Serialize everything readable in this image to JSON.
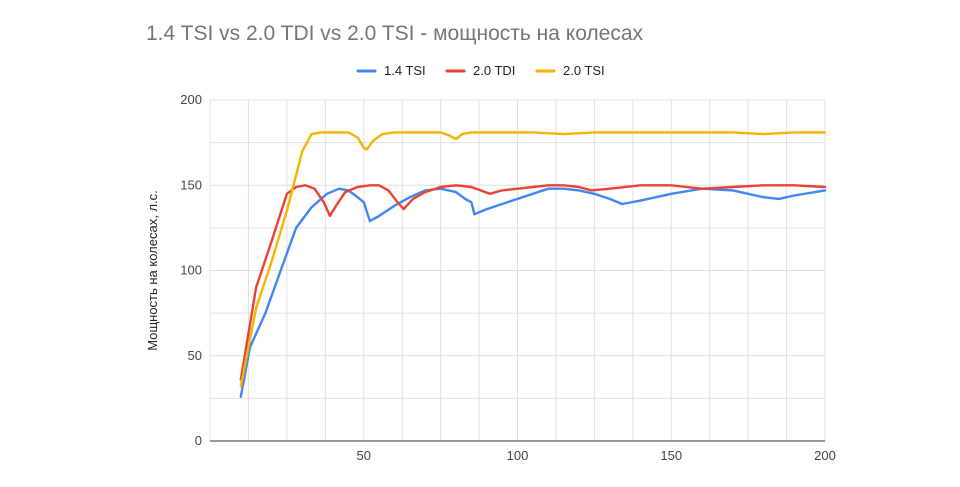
{
  "chart_data": {
    "type": "line",
    "title": "1.4 TSI vs 2.0 TDI vs 2.0 TSI - мощность на колесах",
    "xlabel": "",
    "ylabel": "Мощность на колесах, л.с.",
    "xlim": [
      0,
      200
    ],
    "ylim": [
      0,
      200
    ],
    "x_ticks": [
      50,
      100,
      150,
      200
    ],
    "y_ticks": [
      0,
      50,
      100,
      150,
      200
    ],
    "grid": true,
    "legend_position": "top",
    "series": [
      {
        "name": "1.4 TSI",
        "color": "#4285F4",
        "points": [
          [
            10,
            26
          ],
          [
            13,
            55
          ],
          [
            18,
            75
          ],
          [
            23,
            100
          ],
          [
            28,
            125
          ],
          [
            33,
            137
          ],
          [
            38,
            145
          ],
          [
            42,
            148
          ],
          [
            45,
            147
          ],
          [
            48,
            143
          ],
          [
            50,
            140
          ],
          [
            52,
            129
          ],
          [
            55,
            132
          ],
          [
            60,
            138
          ],
          [
            65,
            143
          ],
          [
            70,
            147
          ],
          [
            75,
            148
          ],
          [
            80,
            146
          ],
          [
            83,
            142
          ],
          [
            85,
            140
          ],
          [
            86,
            133
          ],
          [
            90,
            136
          ],
          [
            95,
            139
          ],
          [
            100,
            142
          ],
          [
            105,
            145
          ],
          [
            110,
            148
          ],
          [
            115,
            148
          ],
          [
            120,
            147
          ],
          [
            125,
            145
          ],
          [
            130,
            142
          ],
          [
            134,
            139
          ],
          [
            140,
            141
          ],
          [
            150,
            145
          ],
          [
            160,
            148
          ],
          [
            170,
            147
          ],
          [
            180,
            143
          ],
          [
            185,
            142
          ],
          [
            190,
            144
          ],
          [
            200,
            147
          ]
        ]
      },
      {
        "name": "2.0 TDI",
        "color": "#EA4335",
        "points": [
          [
            10,
            36
          ],
          [
            15,
            90
          ],
          [
            20,
            117
          ],
          [
            25,
            145
          ],
          [
            28,
            149
          ],
          [
            31,
            150
          ],
          [
            34,
            148
          ],
          [
            37,
            140
          ],
          [
            39,
            132
          ],
          [
            41,
            138
          ],
          [
            44,
            146
          ],
          [
            48,
            149
          ],
          [
            52,
            150
          ],
          [
            55,
            150
          ],
          [
            58,
            147
          ],
          [
            61,
            140
          ],
          [
            63,
            136
          ],
          [
            66,
            142
          ],
          [
            70,
            146
          ],
          [
            75,
            149
          ],
          [
            80,
            150
          ],
          [
            85,
            149
          ],
          [
            88,
            147
          ],
          [
            91,
            145
          ],
          [
            95,
            147
          ],
          [
            100,
            148
          ],
          [
            105,
            149
          ],
          [
            110,
            150
          ],
          [
            115,
            150
          ],
          [
            120,
            149
          ],
          [
            124,
            147
          ],
          [
            130,
            148
          ],
          [
            140,
            150
          ],
          [
            150,
            150
          ],
          [
            160,
            148
          ],
          [
            170,
            149
          ],
          [
            180,
            150
          ],
          [
            190,
            150
          ],
          [
            200,
            149
          ]
        ]
      },
      {
        "name": "2.0 TSI",
        "color": "#F4B400",
        "points": [
          [
            10,
            32
          ],
          [
            15,
            78
          ],
          [
            20,
            105
          ],
          [
            25,
            135
          ],
          [
            30,
            170
          ],
          [
            33,
            180
          ],
          [
            36,
            181
          ],
          [
            40,
            181
          ],
          [
            45,
            181
          ],
          [
            48,
            178
          ],
          [
            50,
            172
          ],
          [
            51,
            171
          ],
          [
            53,
            176
          ],
          [
            56,
            180
          ],
          [
            60,
            181
          ],
          [
            70,
            181
          ],
          [
            75,
            181
          ],
          [
            78,
            179
          ],
          [
            80,
            177
          ],
          [
            82,
            180
          ],
          [
            85,
            181
          ],
          [
            95,
            181
          ],
          [
            105,
            181
          ],
          [
            115,
            180
          ],
          [
            125,
            181
          ],
          [
            140,
            181
          ],
          [
            150,
            181
          ],
          [
            160,
            181
          ],
          [
            170,
            181
          ],
          [
            180,
            180
          ],
          [
            190,
            181
          ],
          [
            200,
            181
          ]
        ]
      }
    ]
  }
}
